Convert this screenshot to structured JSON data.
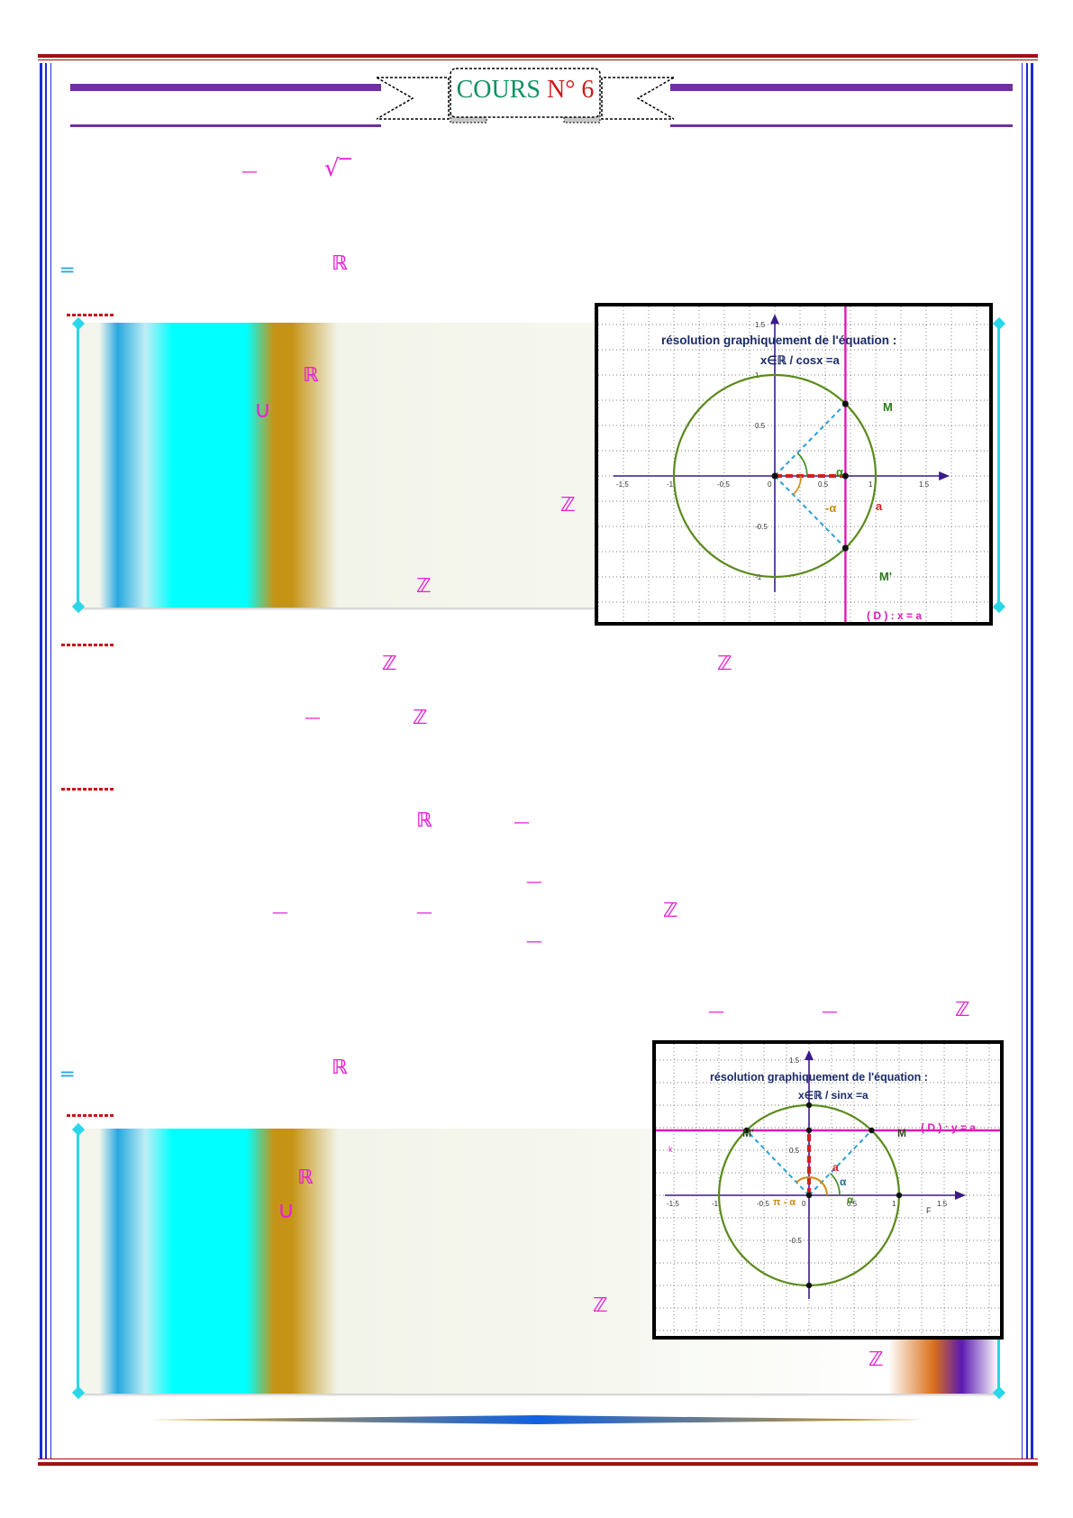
{
  "header": {
    "title_part1": "COURS",
    "title_part2": "N° 6"
  },
  "symbols": {
    "frac_bar": "—",
    "sqrt": "√‾",
    "reals": "ℝ",
    "integers": "ℤ",
    "union": "∪",
    "double_bar": "═"
  },
  "figure_cos": {
    "title": "résolution graphiquement de l'équation :",
    "subtitle": "x∈ℝ / cosx =a",
    "point_M": "M",
    "point_M_prime": "M'",
    "angle_alpha": "α",
    "angle_neg_alpha": "-α",
    "label_a": "a",
    "line_D": "( D ) : x = a",
    "ticks_x": [
      "-1.5",
      "-1",
      "-0.5",
      "0",
      "0.5",
      "1",
      "1.5"
    ],
    "ticks_y": [
      "1.5",
      "1",
      "0.5",
      "-0.5",
      "-1"
    ],
    "colors": {
      "circle": "#5a8a1a",
      "axis": "#3a1a8a",
      "line": "#e01ab8",
      "segment": "#d42020",
      "radius": "#2aa0d8"
    }
  },
  "figure_sin": {
    "title": "résolution graphiquement de l'équation :",
    "subtitle": "x∈ℝ / sinx =a",
    "point_M": "M",
    "point_M_prime": "M'",
    "angle_alpha": "α",
    "angle_pi_minus_alpha": "π - α",
    "label_a": "a",
    "line_D": "( D ) : y = a",
    "label_k": "k",
    "label_F": "F",
    "ticks_x": [
      "-1.5",
      "-1",
      "-0.5",
      "0",
      "0.5",
      "1",
      "1.5"
    ],
    "ticks_y": [
      "1.5",
      "0.5",
      "-0.5"
    ],
    "colors": {
      "circle": "#5a8a1a",
      "axis": "#3a1a8a",
      "line": "#e01ab8",
      "segment": "#d42020",
      "radius": "#2aa0d8"
    }
  }
}
